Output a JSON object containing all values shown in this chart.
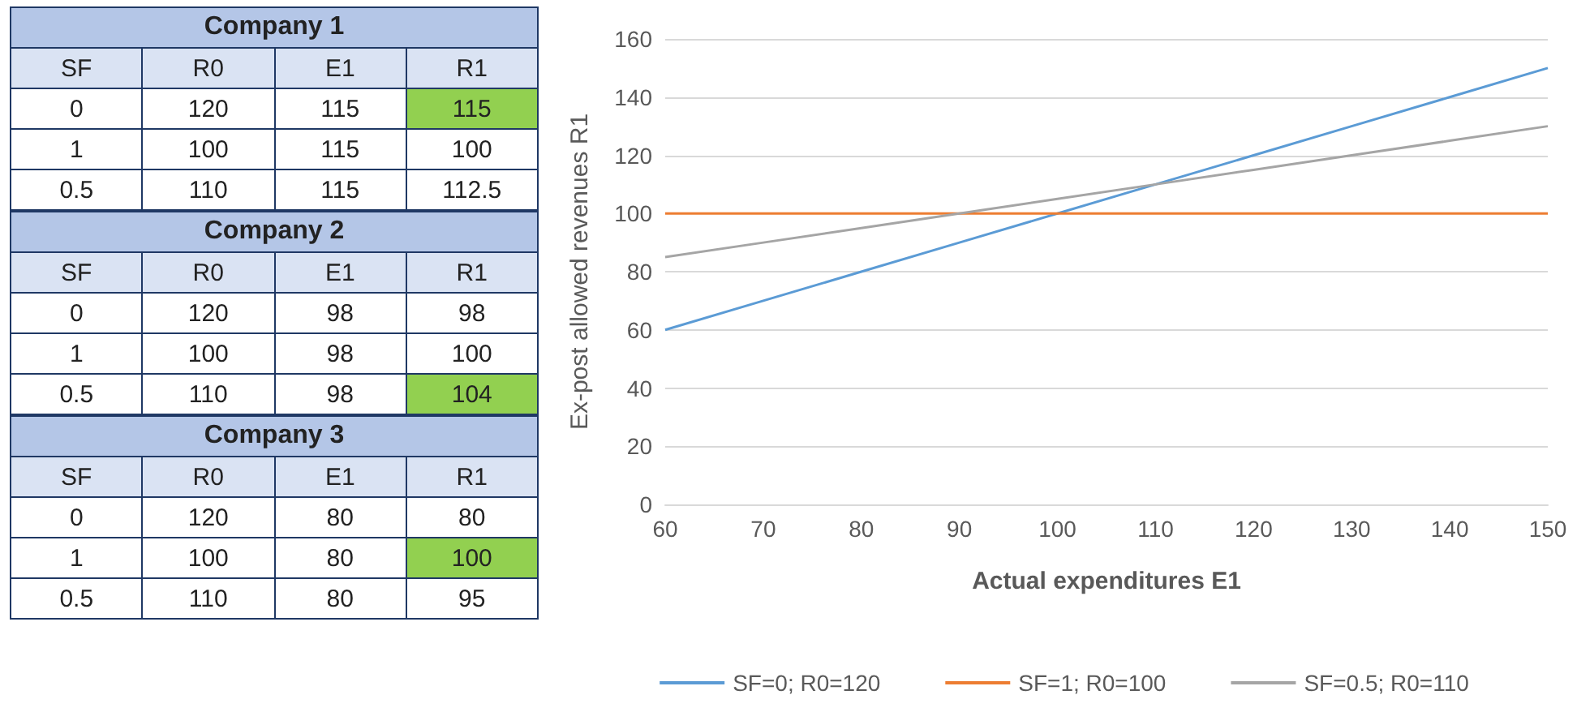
{
  "chart_data": [
    {
      "type": "heatmap",
      "data_labels": true,
      "title": "Company 1",
      "ylabel": "SF",
      "categories": [
        "R0",
        "E1",
        "R1"
      ],
      "y_categories": [
        "0",
        "1",
        "0.5"
      ],
      "cells": [
        [
          120,
          115,
          115
        ],
        [
          100,
          115,
          100
        ],
        [
          110,
          115,
          112.5
        ]
      ],
      "colors": [
        [
          null,
          null,
          "#92d050"
        ],
        [
          null,
          null,
          null
        ],
        [
          null,
          null,
          null
        ]
      ]
    },
    {
      "type": "heatmap",
      "data_labels": true,
      "title": "Company 2",
      "ylabel": "SF",
      "categories": [
        "R0",
        "E1",
        "R1"
      ],
      "y_categories": [
        "0",
        "1",
        "0.5"
      ],
      "cells": [
        [
          120,
          98,
          98
        ],
        [
          100,
          98,
          100
        ],
        [
          110,
          98,
          104
        ]
      ],
      "colors": [
        [
          null,
          null,
          null
        ],
        [
          null,
          null,
          null
        ],
        [
          null,
          null,
          "#92d050"
        ]
      ]
    },
    {
      "type": "heatmap",
      "data_labels": true,
      "title": "Company 3",
      "ylabel": "SF",
      "categories": [
        "R0",
        "E1",
        "R1"
      ],
      "y_categories": [
        "0",
        "1",
        "0.5"
      ],
      "cells": [
        [
          120,
          80,
          80
        ],
        [
          100,
          80,
          100
        ],
        [
          110,
          80,
          95
        ]
      ],
      "colors": [
        [
          null,
          null,
          null
        ],
        [
          null,
          null,
          "#92d050"
        ],
        [
          null,
          null,
          null
        ]
      ]
    },
    {
      "type": "line",
      "xlabel": "Actual expenditures E1",
      "ylabel": "Ex-post allowed revenues R1",
      "x": [
        60,
        70,
        80,
        90,
        100,
        110,
        120,
        130,
        140,
        150
      ],
      "series": [
        {
          "name": "SF=0; R0=120",
          "color": "#5b9bd5",
          "values": [
            60,
            70,
            80,
            90,
            100,
            110,
            120,
            130,
            140,
            150
          ]
        },
        {
          "name": "SF=1; R0=100",
          "color": "#ed7d31",
          "values": [
            100,
            100,
            100,
            100,
            100,
            100,
            100,
            100,
            100,
            100
          ]
        },
        {
          "name": "SF=0.5; R0=110",
          "color": "#a5a5a5",
          "values": [
            85,
            90,
            95,
            100,
            105,
            110,
            115,
            120,
            125,
            130
          ]
        }
      ],
      "xlim": [
        60,
        150
      ],
      "xticks": [
        60,
        70,
        80,
        90,
        100,
        110,
        120,
        130,
        140,
        150
      ],
      "ylim": [
        0,
        160
      ],
      "yticks": [
        0,
        20,
        40,
        60,
        80,
        100,
        120,
        140,
        160
      ],
      "grid": "y",
      "legend": "bottom",
      "marker": "none",
      "line_style": "solid"
    }
  ]
}
